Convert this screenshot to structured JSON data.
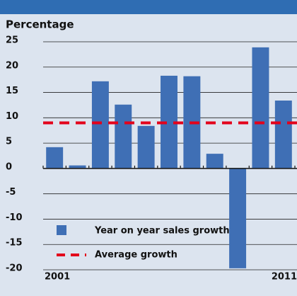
{
  "chart_data": {
    "type": "bar",
    "ylabel": "Percentage",
    "categories": [
      "2001",
      null,
      null,
      null,
      null,
      null,
      null,
      null,
      null,
      null,
      "2011"
    ],
    "series": [
      {
        "name": "Year on year sales growth",
        "color": "#3f6fb5",
        "values": [
          4.2,
          0.6,
          17.2,
          12.6,
          8.4,
          18.3,
          18.2,
          2.9,
          -19.7,
          23.9,
          13.4
        ]
      }
    ],
    "average": {
      "name": "Average growth",
      "value": 9,
      "color": "#e3001b"
    },
    "ylim": [
      -20,
      25
    ],
    "yticks": [
      -20,
      -15,
      -10,
      -5,
      0,
      5,
      10,
      15,
      20,
      25
    ],
    "grid": true
  }
}
